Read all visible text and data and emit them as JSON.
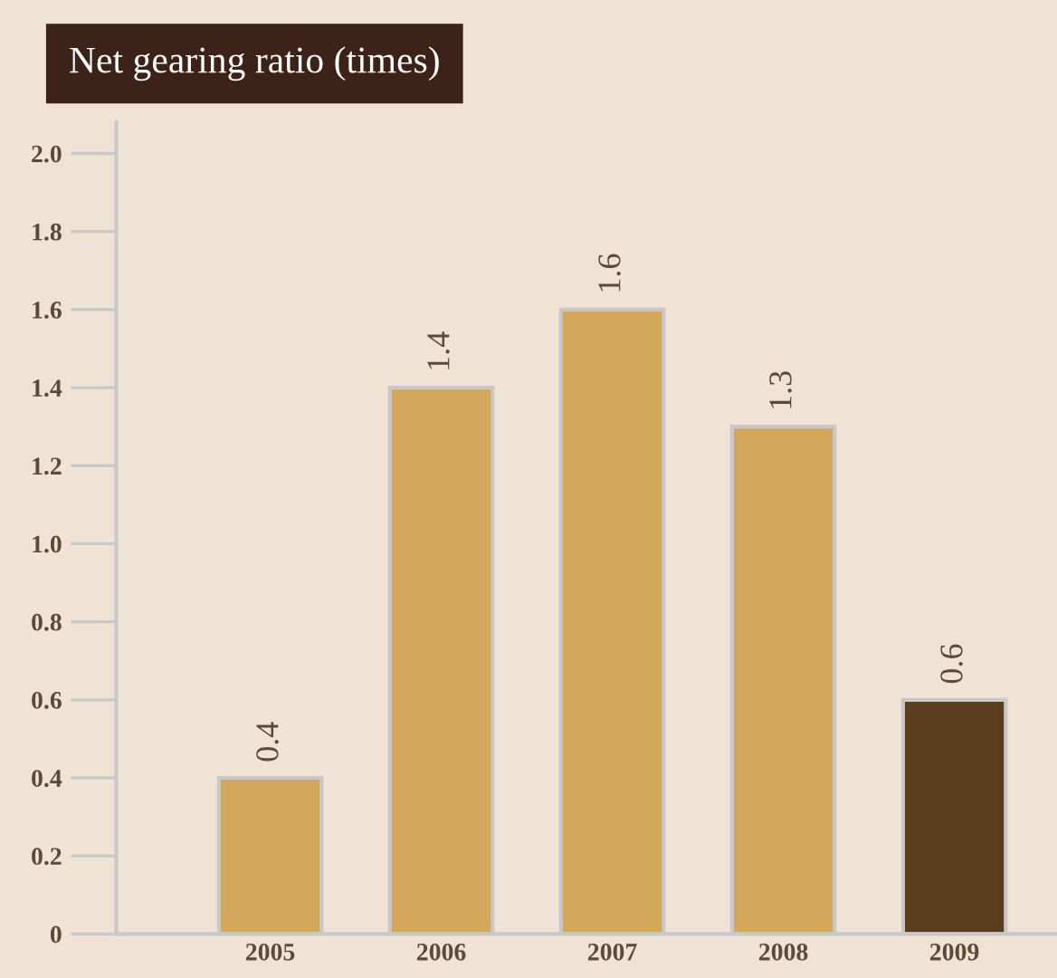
{
  "chart_data": {
    "type": "bar",
    "title": "Net gearing ratio (times)",
    "categories": [
      "2005",
      "2006",
      "2007",
      "2008",
      "2009"
    ],
    "values": [
      0.4,
      1.4,
      1.6,
      1.3,
      0.6
    ],
    "colors": [
      "#d4a85c",
      "#d4a85c",
      "#d4a85c",
      "#d4a85c",
      "#5a3e1e"
    ],
    "data_labels": true,
    "ylim": [
      0,
      2.08
    ],
    "yticks": [
      0,
      0.2,
      0.4,
      0.6,
      0.8,
      {
        "value": 1.0,
        "label": "1.0"
      },
      1.2,
      1.4,
      1.6,
      1.8,
      {
        "value": 2.0,
        "label": "2.0"
      }
    ],
    "grid": false
  }
}
